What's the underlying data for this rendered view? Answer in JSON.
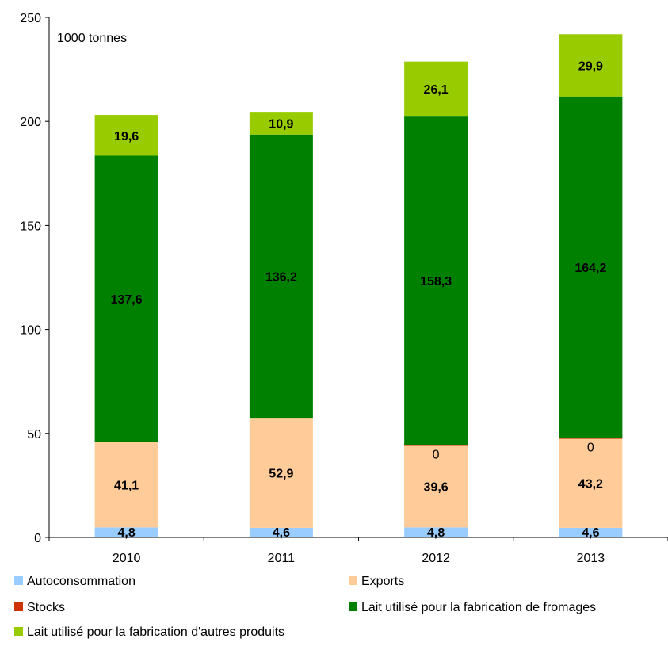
{
  "chart_data": {
    "type": "bar",
    "stacked": true,
    "unit_note": "1000 tonnes",
    "categories": [
      "2010",
      "2011",
      "2012",
      "2013"
    ],
    "ylim": [
      0,
      250
    ],
    "yticks": [
      0,
      50,
      100,
      150,
      200,
      250
    ],
    "grid": false,
    "legend_position": "bottom",
    "series": [
      {
        "name": "Autoconsommation",
        "color": "#99CCFF",
        "values": [
          4.8,
          4.6,
          4.8,
          4.6
        ],
        "labels": [
          "4,8",
          "4,6",
          "4,8",
          "4,6"
        ]
      },
      {
        "name": "Exports",
        "color": "#FFCC99",
        "values": [
          41.1,
          52.9,
          39.6,
          43.2
        ],
        "labels": [
          "41,1",
          "52,9",
          "39,6",
          "43,2"
        ]
      },
      {
        "name": "Stocks",
        "color": "#CC3300",
        "values": [
          0,
          0,
          0,
          0
        ],
        "labels": [
          "",
          "",
          "0",
          "0"
        ]
      },
      {
        "name": "Lait utilisé pour la fabrication de fromages",
        "color": "#008000",
        "values": [
          137.6,
          136.2,
          158.3,
          164.2
        ],
        "labels": [
          "137,6",
          "136,2",
          "158,3",
          "164,2"
        ]
      },
      {
        "name": "Lait utilisé pour la fabrication d'autres produits",
        "color": "#99CC00",
        "values": [
          19.6,
          10.9,
          26.1,
          29.9
        ],
        "labels": [
          "19,6",
          "10,9",
          "26,1",
          "29,9"
        ]
      }
    ]
  }
}
